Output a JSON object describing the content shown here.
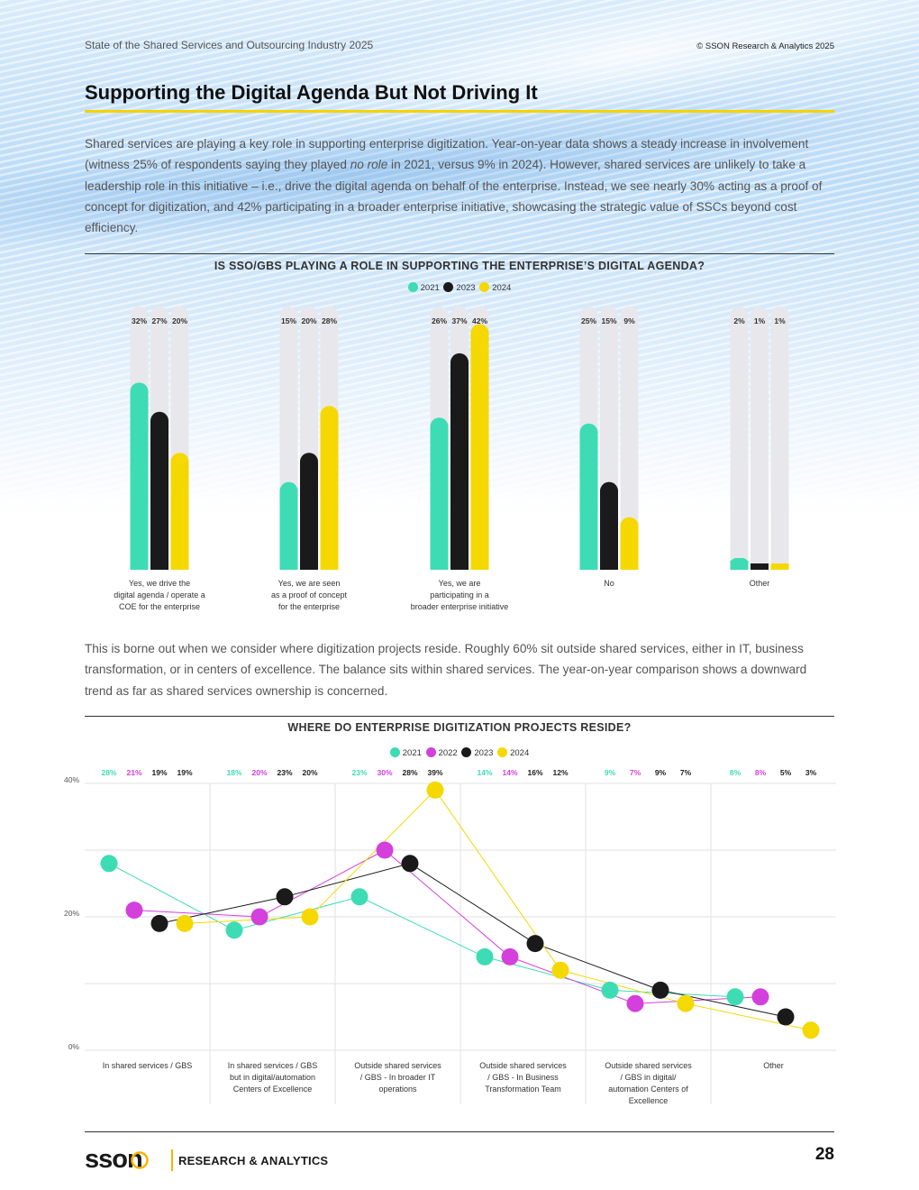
{
  "header": {
    "report_title": "State of the Shared Services and Outsourcing Industry 2025",
    "copyright": "© SSON Research & Analytics 2025"
  },
  "page": {
    "title": "Supporting the Digital Agenda But Not Driving It",
    "para1_a": "Shared services are playing a key role in supporting enterprise digitization. Year-on-year data shows a steady increase in involvement (witness 25% of respondents saying they played ",
    "para1_em": "no role",
    "para1_b": " in 2021, versus 9% in 2024). However, shared services are unlikely to take a leadership role in this initiative – i.e., drive the digital agenda on behalf of the enterprise. Instead, we see nearly 30% acting as a proof of concept for digitization, and 42% participating in a broader enterprise initiative, showcasing the strategic value of SSCs beyond cost efficiency.",
    "para2": "This is borne out when we consider where digitization projects reside. Roughly 60% sit outside shared services, either in IT, business transformation, or in centers of excellence. The balance sits within shared services. The year-on-year comparison shows a downward trend as far as shared services ownership is concerned."
  },
  "colors": {
    "c2021": "#3ddcb4",
    "c2022": "#d440dc",
    "c2023": "#1a1a1a",
    "c2024": "#f5d800",
    "track": "#e8e8ec",
    "accent": "#f5d300"
  },
  "footer": {
    "logo_text": "sson",
    "brand": "RESEARCH & ANALYTICS",
    "page_number": "28"
  },
  "chart_data": [
    {
      "type": "bar",
      "title": "IS SSO/GBS PLAYING A ROLE IN SUPPORTING THE ENTERPRISE’S DIGITAL AGENDA?",
      "legend": [
        "2021",
        "2023",
        "2024"
      ],
      "ylim": [
        0,
        45
      ],
      "categories": [
        [
          "Yes, we drive the",
          "digital agenda / operate a",
          "COE for the enterprise"
        ],
        [
          "Yes, we are seen",
          "as a proof of concept",
          "for the enterprise"
        ],
        [
          "Yes, we are",
          "participating in a",
          "broader enterprise initiative"
        ],
        [
          "No"
        ],
        [
          "Other"
        ]
      ],
      "series": [
        {
          "name": "2021",
          "values": [
            32,
            15,
            26,
            25,
            2
          ]
        },
        {
          "name": "2023",
          "values": [
            27,
            20,
            37,
            15,
            1
          ]
        },
        {
          "name": "2024",
          "values": [
            20,
            28,
            42,
            9,
            1
          ]
        }
      ]
    },
    {
      "type": "line",
      "title": "WHERE DO ENTERPRISE DIGITIZATION PROJECTS RESIDE?",
      "legend": [
        "2021",
        "2022",
        "2023",
        "2024"
      ],
      "ylim": [
        0,
        40
      ],
      "yticks": [
        "0%",
        "20%",
        "40%"
      ],
      "grid": true,
      "categories": [
        [
          "In shared services / GBS"
        ],
        [
          "In shared services / GBS",
          "but in digital/automation",
          "Centers of Excellence"
        ],
        [
          "Outside shared services",
          "/ GBS - In broader IT",
          "operations"
        ],
        [
          "Outside shared services",
          "/ GBS - In Business",
          "Transformation Team"
        ],
        [
          "Outside shared services",
          "/ GBS in digital/",
          "automation Centers of",
          "Excellence"
        ],
        [
          "Other"
        ]
      ],
      "series": [
        {
          "name": "2021",
          "values": [
            28,
            18,
            23,
            14,
            9,
            8
          ]
        },
        {
          "name": "2022",
          "values": [
            21,
            20,
            30,
            14,
            7,
            8
          ]
        },
        {
          "name": "2023",
          "values": [
            19,
            23,
            28,
            16,
            9,
            5
          ]
        },
        {
          "name": "2024",
          "values": [
            19,
            20,
            39,
            12,
            7,
            3
          ]
        }
      ]
    }
  ]
}
